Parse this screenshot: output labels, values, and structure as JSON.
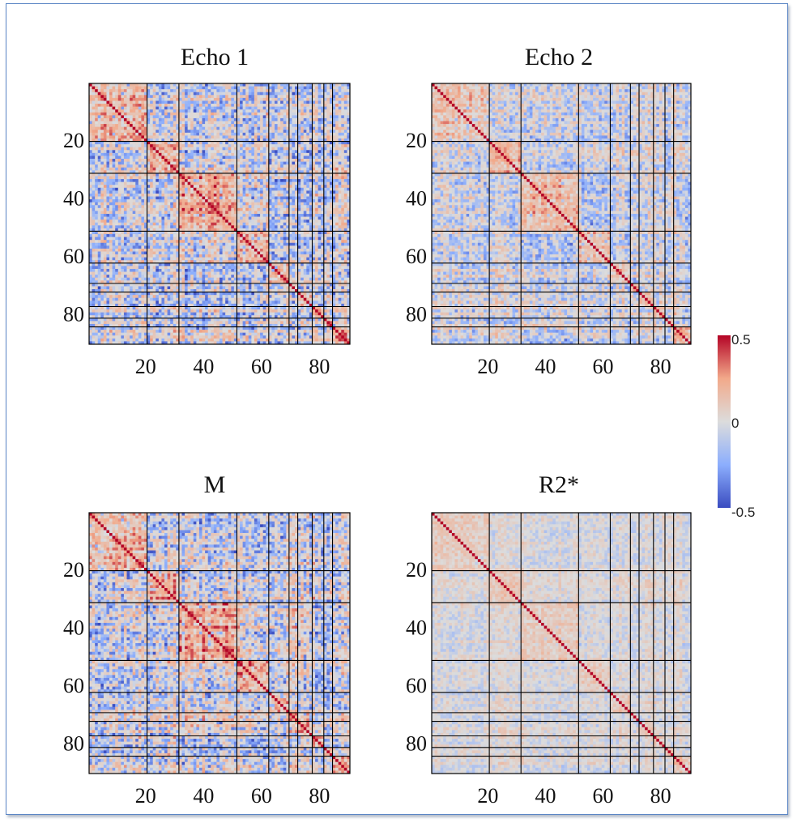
{
  "chart_data": [
    {
      "type": "heatmap",
      "title": "Echo 1",
      "n_regions": 90,
      "xticks": [
        20,
        40,
        60,
        80
      ],
      "yticks": [
        20,
        40,
        60,
        80
      ],
      "xlabel": "",
      "ylabel": "",
      "network_boundaries": [
        20,
        31,
        51,
        62,
        69,
        72,
        77,
        81,
        84
      ],
      "intensity": 1.0,
      "negative_bias": 0.95,
      "clim": [
        -0.5,
        0.5
      ],
      "seed": 11
    },
    {
      "type": "heatmap",
      "title": "Echo 2",
      "n_regions": 90,
      "xticks": [
        20,
        40,
        60,
        80
      ],
      "yticks": [
        20,
        40,
        60,
        80
      ],
      "xlabel": "",
      "ylabel": "",
      "network_boundaries": [
        20,
        31,
        51,
        62,
        69,
        72,
        77,
        81,
        84
      ],
      "intensity": 0.75,
      "negative_bias": 0.85,
      "clim": [
        -0.5,
        0.5
      ],
      "seed": 23
    },
    {
      "type": "heatmap",
      "title": "M",
      "n_regions": 90,
      "xticks": [
        20,
        40,
        60,
        80
      ],
      "yticks": [
        20,
        40,
        60,
        80
      ],
      "xlabel": "",
      "ylabel": "",
      "network_boundaries": [
        20,
        31,
        51,
        62,
        69,
        72,
        77,
        81,
        84
      ],
      "intensity": 1.0,
      "negative_bias": 0.95,
      "clim": [
        -0.5,
        0.5
      ],
      "seed": 37
    },
    {
      "type": "heatmap",
      "title": "R2*",
      "n_regions": 90,
      "xticks": [
        20,
        40,
        60,
        80
      ],
      "yticks": [
        20,
        40,
        60,
        80
      ],
      "xlabel": "",
      "ylabel": "",
      "network_boundaries": [
        20,
        31,
        51,
        62,
        69,
        72,
        77,
        81,
        84
      ],
      "intensity": 0.45,
      "negative_bias": 0.55,
      "clim": [
        -0.5,
        0.5
      ],
      "seed": 51
    }
  ],
  "colorbar": {
    "max_label": "0.5",
    "mid_label": "0",
    "min_label": "-0.5",
    "colors": [
      "#3a4cc0",
      "#8caefd",
      "#dcdcdc",
      "#f2a98a",
      "#b40426"
    ]
  },
  "colors": {
    "frame_border": "#5b86c5",
    "grid_line": "#000000"
  }
}
